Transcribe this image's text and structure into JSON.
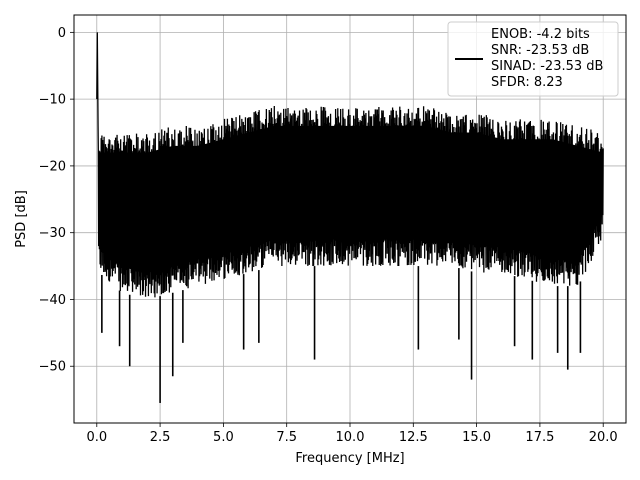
{
  "chart_data": {
    "type": "line",
    "title": "",
    "xlabel": "Frequency [MHz]",
    "ylabel": "PSD [dB]",
    "xlim": [
      -0.9,
      20.9
    ],
    "ylim": [
      -58.5,
      2.6
    ],
    "xticks": [
      0.0,
      2.5,
      5.0,
      7.5,
      10.0,
      12.5,
      15.0,
      17.5,
      20.0
    ],
    "xtick_labels": [
      "0.0",
      "2.5",
      "5.0",
      "7.5",
      "10.0",
      "12.5",
      "15.0",
      "17.5",
      "20.0"
    ],
    "yticks": [
      0,
      -10,
      -20,
      -30,
      -40,
      -50
    ],
    "ytick_labels": [
      "0",
      "−10",
      "−20",
      "−30",
      "−40",
      "−50"
    ],
    "grid": true,
    "legend_position": "top-right",
    "line_color": "#000000",
    "series": [
      {
        "legend_lines": [
          "ENOB: -4.2 bits",
          "SNR: -23.53 dB",
          "SINAD: -23.53 dB",
          "SFDR: 8.23"
        ],
        "x_range": [
          0.0,
          20.0
        ],
        "peak": {
          "x": 0.02,
          "y": 0.0
        },
        "upper_envelope": [
          [
            0.1,
            -14
          ],
          [
            1.0,
            -14
          ],
          [
            2.0,
            -14
          ],
          [
            3.0,
            -13
          ],
          [
            4.0,
            -13
          ],
          [
            5.0,
            -12
          ],
          [
            6.0,
            -11
          ],
          [
            7.0,
            -10
          ],
          [
            8.0,
            -10
          ],
          [
            9.0,
            -10
          ],
          [
            10.0,
            -10
          ],
          [
            11.0,
            -10
          ],
          [
            12.0,
            -10
          ],
          [
            13.0,
            -10
          ],
          [
            14.0,
            -11
          ],
          [
            15.0,
            -11
          ],
          [
            16.0,
            -12
          ],
          [
            17.0,
            -12
          ],
          [
            18.0,
            -12
          ],
          [
            19.0,
            -13
          ],
          [
            20.0,
            -14
          ]
        ],
        "lower_envelope": [
          [
            0.1,
            -36
          ],
          [
            1.0,
            -39
          ],
          [
            2.0,
            -40
          ],
          [
            3.0,
            -39
          ],
          [
            4.0,
            -38
          ],
          [
            5.0,
            -37
          ],
          [
            6.0,
            -36
          ],
          [
            7.0,
            -35
          ],
          [
            8.0,
            -35
          ],
          [
            9.0,
            -35
          ],
          [
            10.0,
            -35
          ],
          [
            11.0,
            -35
          ],
          [
            12.0,
            -35
          ],
          [
            13.0,
            -35
          ],
          [
            14.0,
            -35
          ],
          [
            15.0,
            -36
          ],
          [
            16.0,
            -36
          ],
          [
            17.0,
            -37
          ],
          [
            18.0,
            -38
          ],
          [
            19.0,
            -38
          ],
          [
            20.0,
            -31
          ]
        ],
        "notable_dips": [
          [
            0.2,
            -45
          ],
          [
            0.9,
            -47
          ],
          [
            1.3,
            -50
          ],
          [
            2.5,
            -55.5
          ],
          [
            3.0,
            -51.5
          ],
          [
            3.4,
            -46.5
          ],
          [
            5.8,
            -47.5
          ],
          [
            6.4,
            -46.5
          ],
          [
            8.6,
            -49
          ],
          [
            12.7,
            -47.5
          ],
          [
            14.3,
            -46
          ],
          [
            14.8,
            -52
          ],
          [
            16.5,
            -47
          ],
          [
            17.2,
            -49
          ],
          [
            18.2,
            -48
          ],
          [
            18.6,
            -50.5
          ],
          [
            19.1,
            -48
          ]
        ]
      }
    ]
  }
}
